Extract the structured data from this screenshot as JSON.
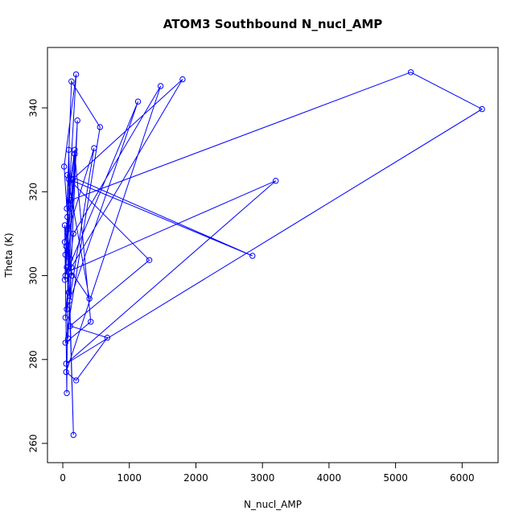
{
  "chart_data": {
    "type": "line",
    "title": "ATOM3 Southbound N_nucl_AMP",
    "xlabel": "N_nucl_AMP",
    "ylabel": "Theta (K)",
    "xlim": [
      -230,
      6540
    ],
    "ylim": [
      255.4,
      354.4
    ],
    "xticks": [
      0,
      1000,
      2000,
      3000,
      4000,
      5000,
      6000
    ],
    "yticks": [
      260,
      280,
      300,
      320,
      340
    ],
    "grid": false,
    "legend": "none",
    "series": [
      {
        "color": "#0000ff",
        "marker": "open-circle",
        "connect": true,
        "points": [
          [
            60,
            302
          ],
          [
            90,
            296
          ],
          [
            40,
            290
          ],
          [
            110,
            304
          ],
          [
            70,
            311
          ],
          [
            30,
            299
          ],
          [
            150,
            323
          ],
          [
            1800,
            346.8
          ],
          [
            130,
            302
          ],
          [
            80,
            285
          ],
          [
            220,
            337
          ],
          [
            60,
            292
          ],
          [
            1130,
            341.5
          ],
          [
            40,
            300
          ],
          [
            120,
            318
          ],
          [
            5230,
            348.5
          ],
          [
            6300,
            339.7
          ],
          [
            50,
            279
          ],
          [
            3200,
            322.6
          ],
          [
            90,
            301
          ],
          [
            160,
            310
          ],
          [
            1470,
            345.2
          ],
          [
            50,
            277
          ],
          [
            200,
            275
          ],
          [
            670,
            285.2
          ],
          [
            110,
            288
          ],
          [
            1300,
            303.7
          ],
          [
            90,
            323
          ],
          [
            2850,
            304.7
          ],
          [
            70,
            324
          ],
          [
            400,
            294.5
          ],
          [
            80,
            302
          ],
          [
            180,
            329
          ],
          [
            420,
            289
          ],
          [
            40,
            284
          ],
          [
            560,
            335.4
          ],
          [
            130,
            346.3
          ],
          [
            60,
            316
          ],
          [
            180,
            330
          ],
          [
            30,
            308
          ],
          [
            470,
            330.4
          ],
          [
            100,
            294
          ],
          [
            160,
            262
          ],
          [
            70,
            314
          ],
          [
            20,
            326
          ],
          [
            200,
            348
          ],
          [
            50,
            307
          ],
          [
            140,
            300
          ],
          [
            30,
            312
          ],
          [
            60,
            272
          ],
          [
            90,
            330
          ],
          [
            110,
            316
          ],
          [
            40,
            305
          ]
        ]
      }
    ]
  }
}
